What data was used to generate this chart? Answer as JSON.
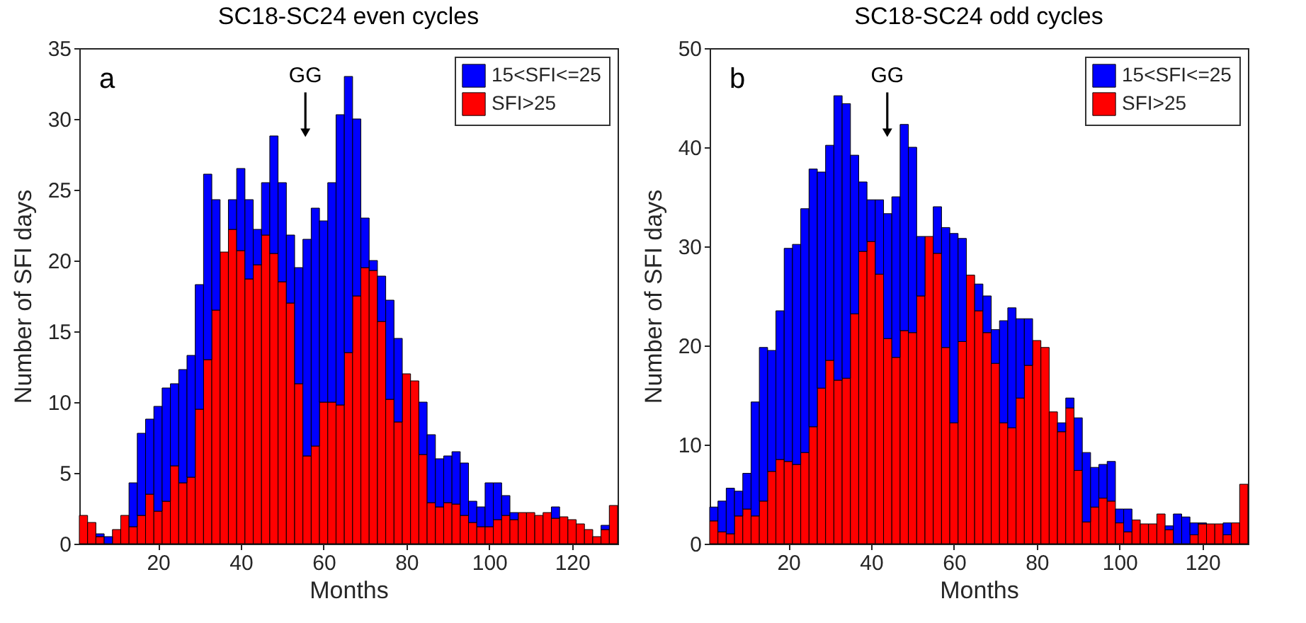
{
  "chart_data": [
    {
      "type": "bar",
      "title": "SC18-SC24 even cycles",
      "xlabel": "Months",
      "ylabel": "Number of SFI days",
      "stacked": true,
      "legend": "top right",
      "grid": false,
      "x": [
        2,
        4,
        6,
        8,
        10,
        12,
        14,
        16,
        18,
        20,
        22,
        24,
        26,
        28,
        30,
        32,
        34,
        36,
        38,
        40,
        42,
        44,
        46,
        48,
        50,
        52,
        54,
        56,
        58,
        60,
        62,
        64,
        66,
        68,
        70,
        72,
        74,
        76,
        78,
        80,
        82,
        84,
        86,
        88,
        90,
        92,
        94,
        96,
        98,
        100,
        102,
        104,
        106,
        108,
        110,
        112,
        114,
        116,
        118,
        120,
        122,
        124,
        126,
        128,
        130
      ],
      "xlim": [
        1,
        131
      ],
      "xticks": [
        20,
        40,
        60,
        80,
        100,
        120
      ],
      "ylim": [
        0,
        35
      ],
      "yticks": [
        0,
        5,
        10,
        15,
        20,
        25,
        30,
        35
      ],
      "annotations": [
        "a",
        "GG"
      ],
      "series": [
        {
          "name": "SFI>25",
          "color": "#ff0000",
          "values": [
            2.0,
            1.5,
            0.5,
            0,
            1.0,
            2.0,
            1.2,
            2.0,
            3.5,
            2.3,
            3.0,
            5.5,
            4.3,
            4.7,
            9.5,
            13.0,
            16.5,
            20.6,
            22.2,
            20.7,
            18.7,
            19.7,
            21.8,
            20.5,
            18.5,
            17.0,
            11.3,
            6.2,
            6.9,
            10.0,
            10.0,
            9.8,
            13.5,
            17.5,
            19.5,
            19.3,
            15.7,
            10.2,
            8.6,
            12.0,
            11.5,
            6.3,
            2.9,
            2.6,
            2.9,
            2.8,
            2.0,
            1.5,
            1.2,
            1.2,
            1.7,
            2.0,
            1.7,
            2.2,
            2.2,
            2.0,
            2.2,
            1.8,
            1.9,
            1.7,
            1.4,
            1.0,
            0.5,
            1.0,
            2.7
          ]
        },
        {
          "name": "15<SFI<=25",
          "color": "#0000ff",
          "values": [
            0,
            0,
            0.2,
            0.5,
            0,
            0,
            3.1,
            5.8,
            5.3,
            7.4,
            8.0,
            5.8,
            8.0,
            8.6,
            8.8,
            13.1,
            7.8,
            0,
            2.1,
            5.8,
            5.6,
            2.5,
            3.7,
            8.3,
            7.0,
            4.8,
            8.2,
            15.3,
            16.8,
            12.8,
            15.5,
            20.5,
            19.5,
            12.5,
            3.5,
            0.7,
            3.2,
            7.0,
            5.9,
            0,
            0,
            3.7,
            4.8,
            3.4,
            3.3,
            3.7,
            3.7,
            1.5,
            1.4,
            3.1,
            2.6,
            1.4,
            0.5,
            0,
            0,
            0,
            0,
            0.8,
            0,
            0,
            0,
            0,
            0,
            0.3,
            0
          ]
        }
      ]
    },
    {
      "type": "bar",
      "title": "SC18-SC24 odd cycles",
      "xlabel": "Months",
      "ylabel": "Number of SFI days",
      "stacked": true,
      "legend": "top right",
      "grid": false,
      "x": [
        2,
        4,
        6,
        8,
        10,
        12,
        14,
        16,
        18,
        20,
        22,
        24,
        26,
        28,
        30,
        32,
        34,
        36,
        38,
        40,
        42,
        44,
        46,
        48,
        50,
        52,
        54,
        56,
        58,
        60,
        62,
        64,
        66,
        68,
        70,
        72,
        74,
        76,
        78,
        80,
        82,
        84,
        86,
        88,
        90,
        92,
        94,
        96,
        98,
        100,
        102,
        104,
        106,
        108,
        110,
        112,
        114,
        116,
        118,
        120,
        122,
        124,
        126,
        128,
        130
      ],
      "xlim": [
        1,
        131
      ],
      "xticks": [
        20,
        40,
        60,
        80,
        100,
        120
      ],
      "ylim": [
        0,
        50
      ],
      "yticks": [
        0,
        10,
        20,
        30,
        40,
        50
      ],
      "annotations": [
        "b",
        "GG"
      ],
      "series": [
        {
          "name": "SFI>25",
          "color": "#ff0000",
          "values": [
            2.3,
            1.2,
            1.0,
            2.8,
            3.5,
            2.8,
            4.3,
            7.3,
            8.5,
            8.3,
            8.0,
            9.2,
            11.8,
            15.7,
            18.5,
            16.5,
            16.7,
            23.2,
            29.5,
            30.5,
            27.2,
            20.7,
            18.8,
            21.5,
            21.3,
            25.0,
            31.0,
            29.3,
            19.8,
            12.2,
            20.4,
            27.1,
            23.5,
            21.3,
            18.2,
            12.2,
            11.7,
            14.7,
            18.0,
            20.5,
            19.8,
            13.3,
            11.3,
            13.7,
            7.4,
            2.2,
            3.7,
            4.6,
            4.3,
            2.1,
            1.2,
            2.4,
            2.0,
            2.0,
            3.0,
            1.4,
            0,
            0,
            0.9,
            2.0,
            2.0,
            2.0,
            0.9,
            2.1,
            6.0
          ]
        },
        {
          "name": "15<SFI<=25",
          "color": "#0000ff",
          "values": [
            1.4,
            3.1,
            4.6,
            2.5,
            3.6,
            11.5,
            15.5,
            12.2,
            15.0,
            21.5,
            22.2,
            24.6,
            26.0,
            21.8,
            21.7,
            28.7,
            27.7,
            16.0,
            7.0,
            4.2,
            7.5,
            12.6,
            16.2,
            20.8,
            18.7,
            6.0,
            0,
            4.7,
            12.1,
            19.1,
            10.4,
            0,
            2.7,
            3.7,
            3.4,
            10.3,
            12.1,
            8.0,
            4.7,
            0,
            0,
            0,
            0.9,
            1.0,
            5.3,
            7.0,
            4.0,
            3.4,
            4.0,
            1.4,
            2.3,
            0,
            0,
            0,
            0,
            0.4,
            3.0,
            2.7,
            1.2,
            0.1,
            0,
            0,
            1.2,
            0,
            0
          ]
        }
      ]
    }
  ]
}
